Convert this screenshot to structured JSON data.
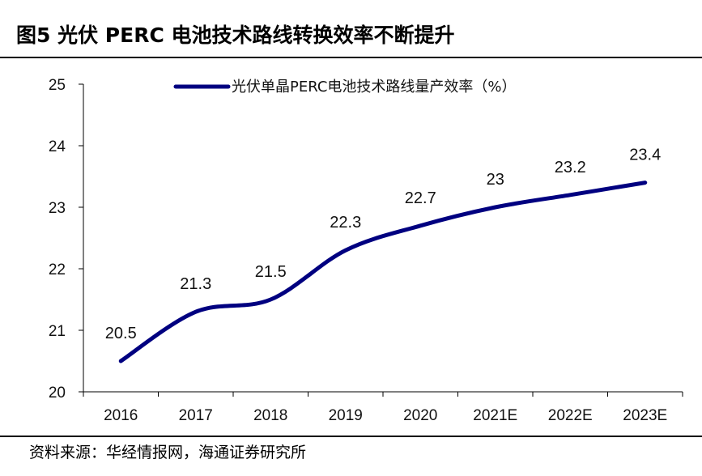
{
  "figure": {
    "title": "图5  光伏 PERC 电池技术路线转换效率不断提升",
    "source": "资料来源：华经情报网，海通证券研究所"
  },
  "colors": {
    "line": "#000080",
    "axis": "#000000"
  },
  "chart_data": {
    "type": "line",
    "categories": [
      "2016",
      "2017",
      "2018",
      "2019",
      "2020",
      "2021E",
      "2022E",
      "2023E"
    ],
    "series": [
      {
        "name": "光伏单晶PERC电池技术路线量产效率（%）",
        "values": [
          20.5,
          21.3,
          21.5,
          22.3,
          22.7,
          23,
          23.2,
          23.4
        ]
      }
    ],
    "data_labels": [
      "20.5",
      "21.3",
      "21.5",
      "22.3",
      "22.7",
      "23",
      "23.2",
      "23.4"
    ],
    "ylim": [
      20,
      25
    ],
    "yticks": [
      20,
      21,
      22,
      23,
      24,
      25
    ],
    "legend_position": "top",
    "grid": false,
    "smooth": true
  }
}
